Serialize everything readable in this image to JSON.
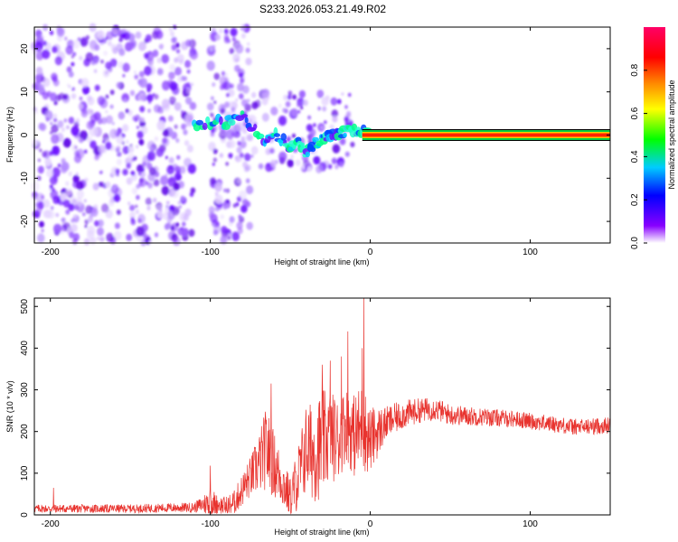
{
  "title": "S233.2026.053.21.49.R02",
  "chart_data": [
    {
      "type": "heatmap",
      "xlabel": "Height of straight line (km)",
      "ylabel": "Frequency (Hz)",
      "xlim": [
        -210,
        150
      ],
      "ylim": [
        -25,
        25
      ],
      "xticks": [
        -200,
        -100,
        0,
        100
      ],
      "yticks": [
        -20,
        -10,
        0,
        10,
        20
      ],
      "colorbar": {
        "label": "Normalized spectral amplitude",
        "range": [
          0,
          1
        ],
        "ticks": [
          "0.0",
          "0.2",
          "0.4",
          "0.6",
          "0.8"
        ],
        "tick_values": [
          0.0,
          0.2,
          0.4,
          0.6,
          0.8
        ],
        "stops": [
          "#ffffff",
          "#8800ff",
          "#0000ff",
          "#00ccff",
          "#00ff00",
          "#ffff00",
          "#ff8800",
          "#ff0000",
          "#ff0066"
        ]
      },
      "ridge": {
        "x": [
          -110,
          -100,
          -90,
          -80,
          -72,
          -66,
          -60,
          -55,
          -50,
          -45,
          -40,
          -35,
          -30,
          -25,
          -20,
          -15,
          -10,
          -5,
          0,
          10,
          150
        ],
        "y": [
          2,
          3,
          3,
          5,
          1,
          -1,
          0,
          -1,
          -3,
          -2,
          -4,
          -2,
          -1,
          0,
          0,
          1,
          1,
          1,
          0,
          0,
          0
        ]
      }
    },
    {
      "type": "line",
      "xlabel": "Height of straight line (km)",
      "ylabel": "SNR (10 * v/v)",
      "xlim": [
        -210,
        150
      ],
      "ylim": [
        0,
        520
      ],
      "xticks": [
        -200,
        -100,
        0,
        100
      ],
      "yticks": [
        0,
        100,
        200,
        300,
        400,
        500
      ],
      "color": "#e8332e",
      "envelope": {
        "x": [
          -210,
          -150,
          -110,
          -105,
          -100,
          -95,
          -90,
          -85,
          -80,
          -75,
          -70,
          -65,
          -60,
          -55,
          -50,
          -45,
          -40,
          -35,
          -30,
          -25,
          -20,
          -15,
          -10,
          -5,
          0,
          5,
          10,
          20,
          30,
          40,
          50,
          70,
          90,
          110,
          130,
          150
        ],
        "base": [
          15,
          15,
          18,
          25,
          30,
          25,
          20,
          30,
          60,
          90,
          120,
          160,
          120,
          80,
          40,
          90,
          160,
          150,
          170,
          190,
          180,
          220,
          190,
          210,
          180,
          200,
          220,
          240,
          250,
          255,
          240,
          235,
          230,
          220,
          210,
          215
        ],
        "amp": [
          10,
          10,
          12,
          20,
          40,
          20,
          25,
          30,
          40,
          50,
          70,
          100,
          80,
          60,
          50,
          80,
          110,
          120,
          130,
          110,
          100,
          90,
          100,
          110,
          80,
          60,
          40,
          35,
          30,
          28,
          25,
          22,
          20,
          20,
          20,
          20
        ]
      },
      "peaks": [
        {
          "x": -198,
          "y": 65
        },
        {
          "x": -100,
          "y": 118
        },
        {
          "x": -62,
          "y": 315
        },
        {
          "x": -30,
          "y": 360
        },
        {
          "x": -25,
          "y": 370
        },
        {
          "x": -18,
          "y": 380
        },
        {
          "x": -14,
          "y": 440
        },
        {
          "x": -5,
          "y": 400
        },
        {
          "x": -4,
          "y": 520
        }
      ]
    }
  ]
}
